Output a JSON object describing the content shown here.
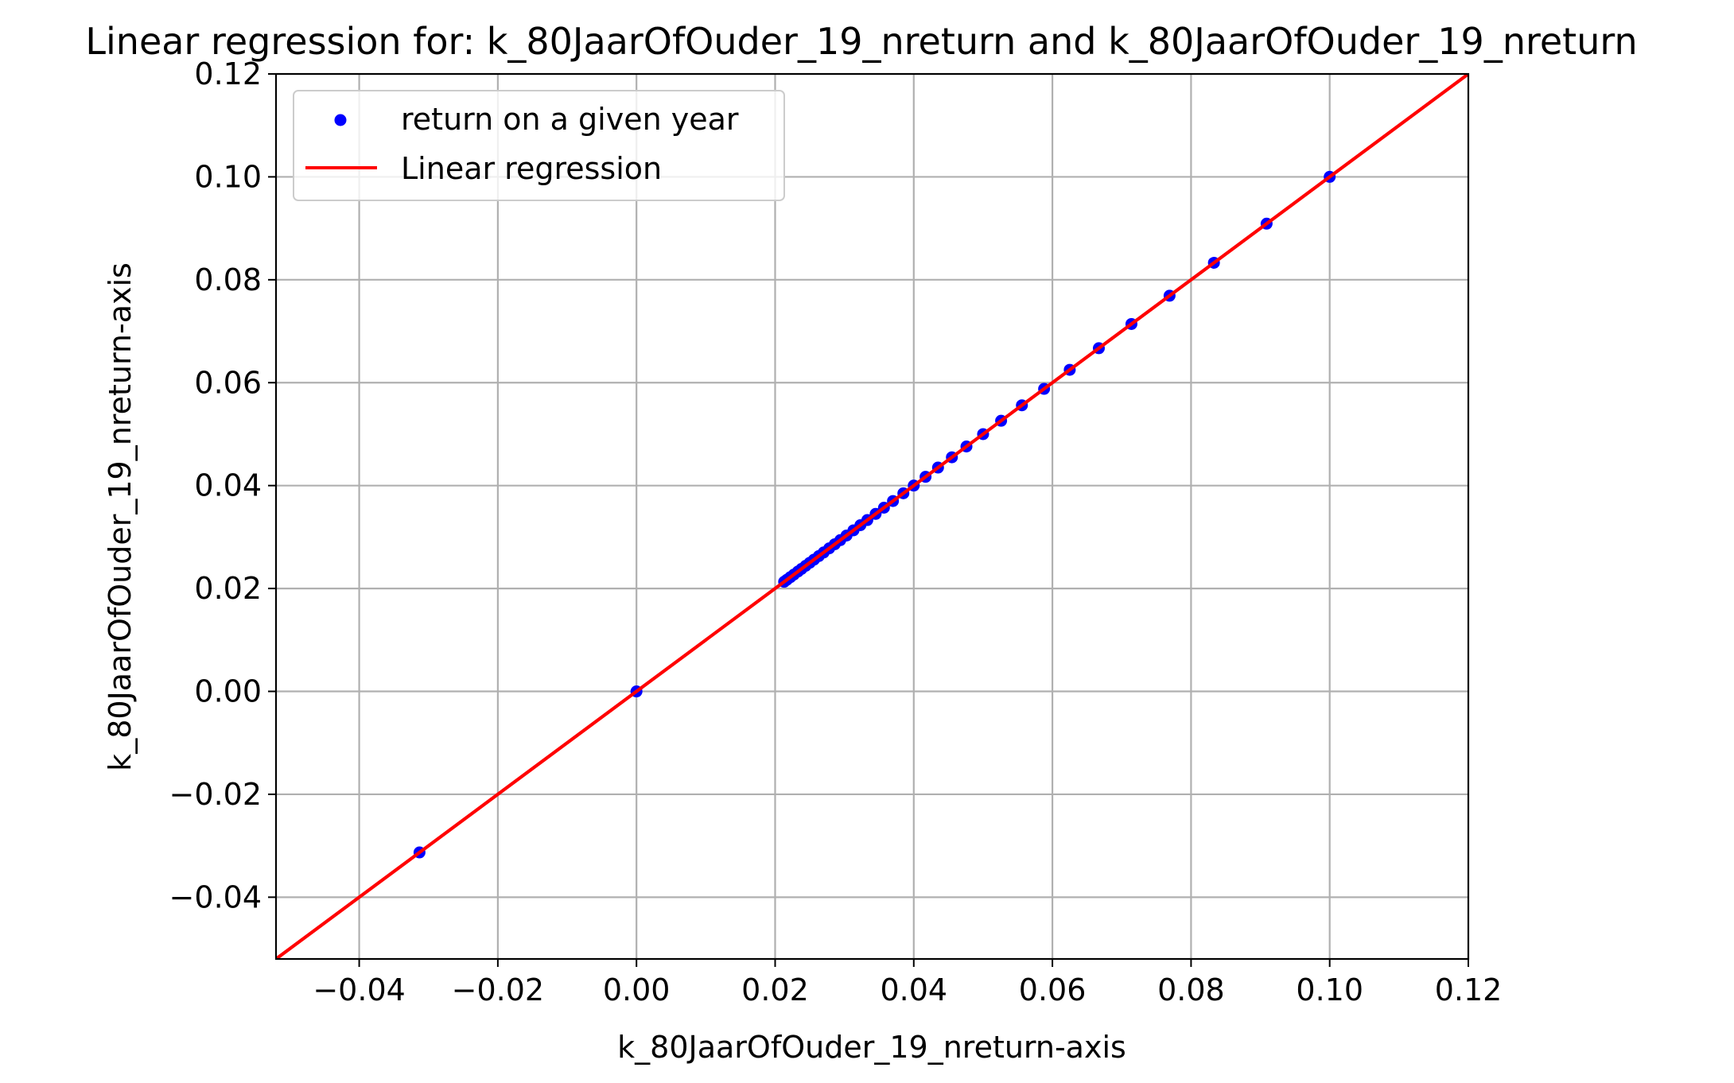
{
  "chart_data": {
    "type": "scatter",
    "title": "Linear regression for: k_80JaarOfOuder_19_nreturn and k_80JaarOfOuder_19_nreturn",
    "xlabel": "k_80JaarOfOuder_19_nreturn-axis",
    "ylabel": "k_80JaarOfOuder_19_nreturn-axis",
    "xlim": [
      -0.052,
      0.12
    ],
    "ylim": [
      -0.052,
      0.12
    ],
    "x_ticks": [
      -0.04,
      -0.02,
      0.0,
      0.02,
      0.04,
      0.06,
      0.08,
      0.1,
      0.12
    ],
    "x_tick_labels": [
      "−0.04",
      "−0.02",
      "0.00",
      "0.02",
      "0.04",
      "0.06",
      "0.08",
      "0.10",
      "0.12"
    ],
    "y_ticks": [
      -0.04,
      -0.02,
      0.0,
      0.02,
      0.04,
      0.06,
      0.08,
      0.1,
      0.12
    ],
    "y_tick_labels": [
      "−0.04",
      "−0.02",
      "0.00",
      "0.02",
      "0.04",
      "0.06",
      "0.08",
      "0.10",
      "0.12"
    ],
    "grid": true,
    "legend_position": "top-left",
    "series": [
      {
        "name": "return on a given year",
        "kind": "scatter",
        "color": "#0000ff",
        "x": [
          -0.0313,
          0.0,
          0.0213,
          0.0217,
          0.0222,
          0.0227,
          0.0233,
          0.0238,
          0.0244,
          0.025,
          0.0256,
          0.0263,
          0.027,
          0.0278,
          0.0286,
          0.0294,
          0.0303,
          0.0313,
          0.0323,
          0.0333,
          0.0345,
          0.0357,
          0.037,
          0.0385,
          0.04,
          0.0417,
          0.0435,
          0.0455,
          0.0476,
          0.05,
          0.0526,
          0.0556,
          0.0588,
          0.0625,
          0.0667,
          0.0714,
          0.0769,
          0.0833,
          0.0909,
          0.1
        ],
        "y": [
          -0.0313,
          0.0,
          0.0213,
          0.0217,
          0.0222,
          0.0227,
          0.0233,
          0.0238,
          0.0244,
          0.025,
          0.0256,
          0.0263,
          0.027,
          0.0278,
          0.0286,
          0.0294,
          0.0303,
          0.0313,
          0.0323,
          0.0333,
          0.0345,
          0.0357,
          0.037,
          0.0385,
          0.04,
          0.0417,
          0.0435,
          0.0455,
          0.0476,
          0.05,
          0.0526,
          0.0556,
          0.0588,
          0.0625,
          0.0667,
          0.0714,
          0.0769,
          0.0833,
          0.0909,
          0.1
        ]
      },
      {
        "name": "Linear regression",
        "kind": "line",
        "color": "#ff0000",
        "x": [
          -0.052,
          0.12
        ],
        "y": [
          -0.052,
          0.12
        ]
      }
    ]
  }
}
